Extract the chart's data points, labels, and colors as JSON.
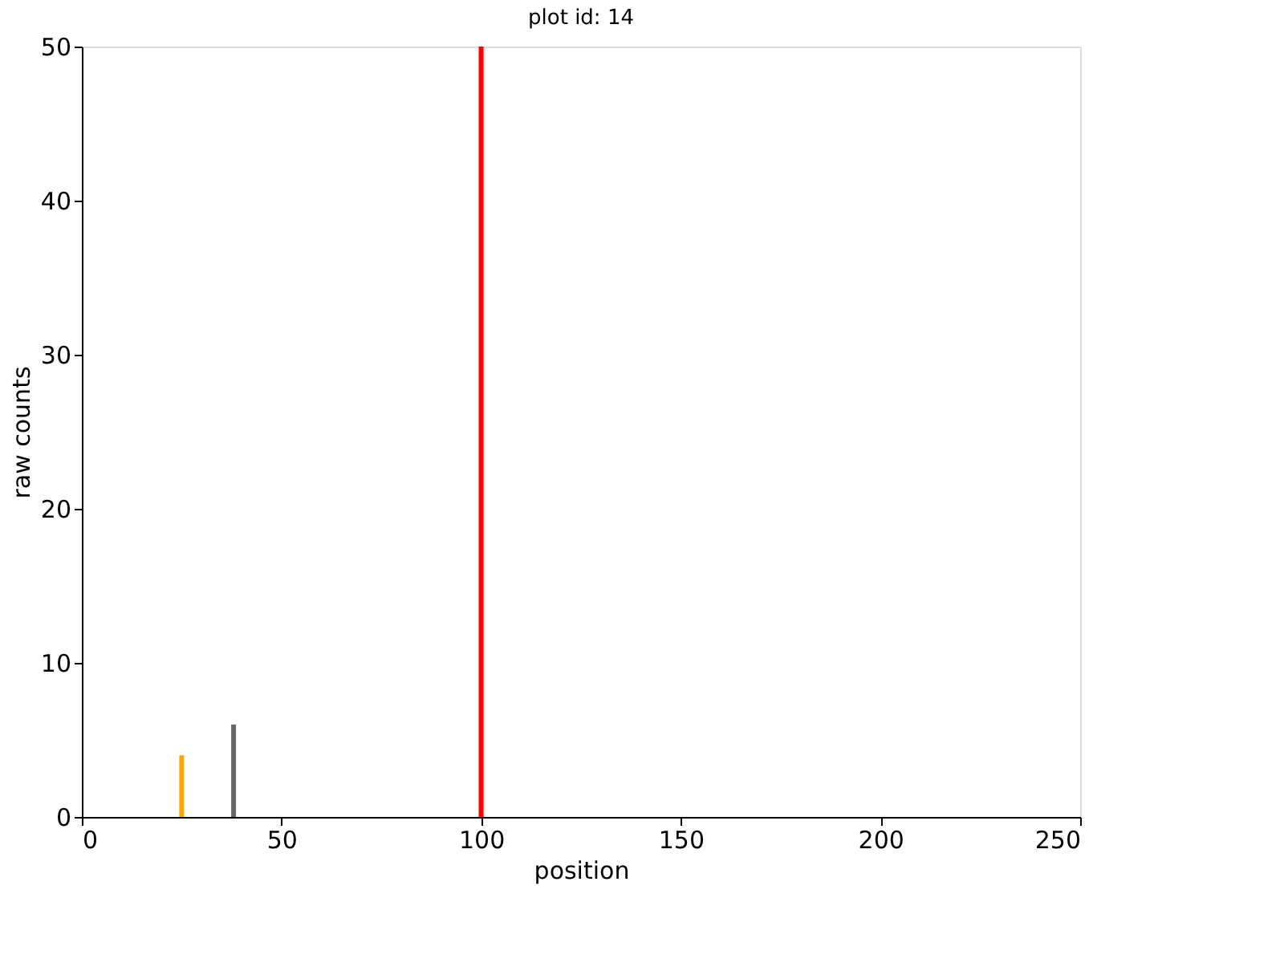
{
  "chart_data": {
    "type": "bar",
    "title": "plot id: 14",
    "xlabel": "position",
    "ylabel": "raw counts",
    "x": [
      25,
      38,
      100
    ],
    "values": [
      4,
      6,
      50
    ],
    "colors": [
      "#ffa500",
      "#666666",
      "#ff0000"
    ],
    "xlim": [
      0,
      250
    ],
    "xticks": [
      0,
      50,
      100,
      150,
      200,
      250
    ],
    "ylim": [
      0,
      50
    ],
    "yticks": [
      0,
      10,
      20,
      30,
      40,
      50
    ],
    "grid": false
  }
}
